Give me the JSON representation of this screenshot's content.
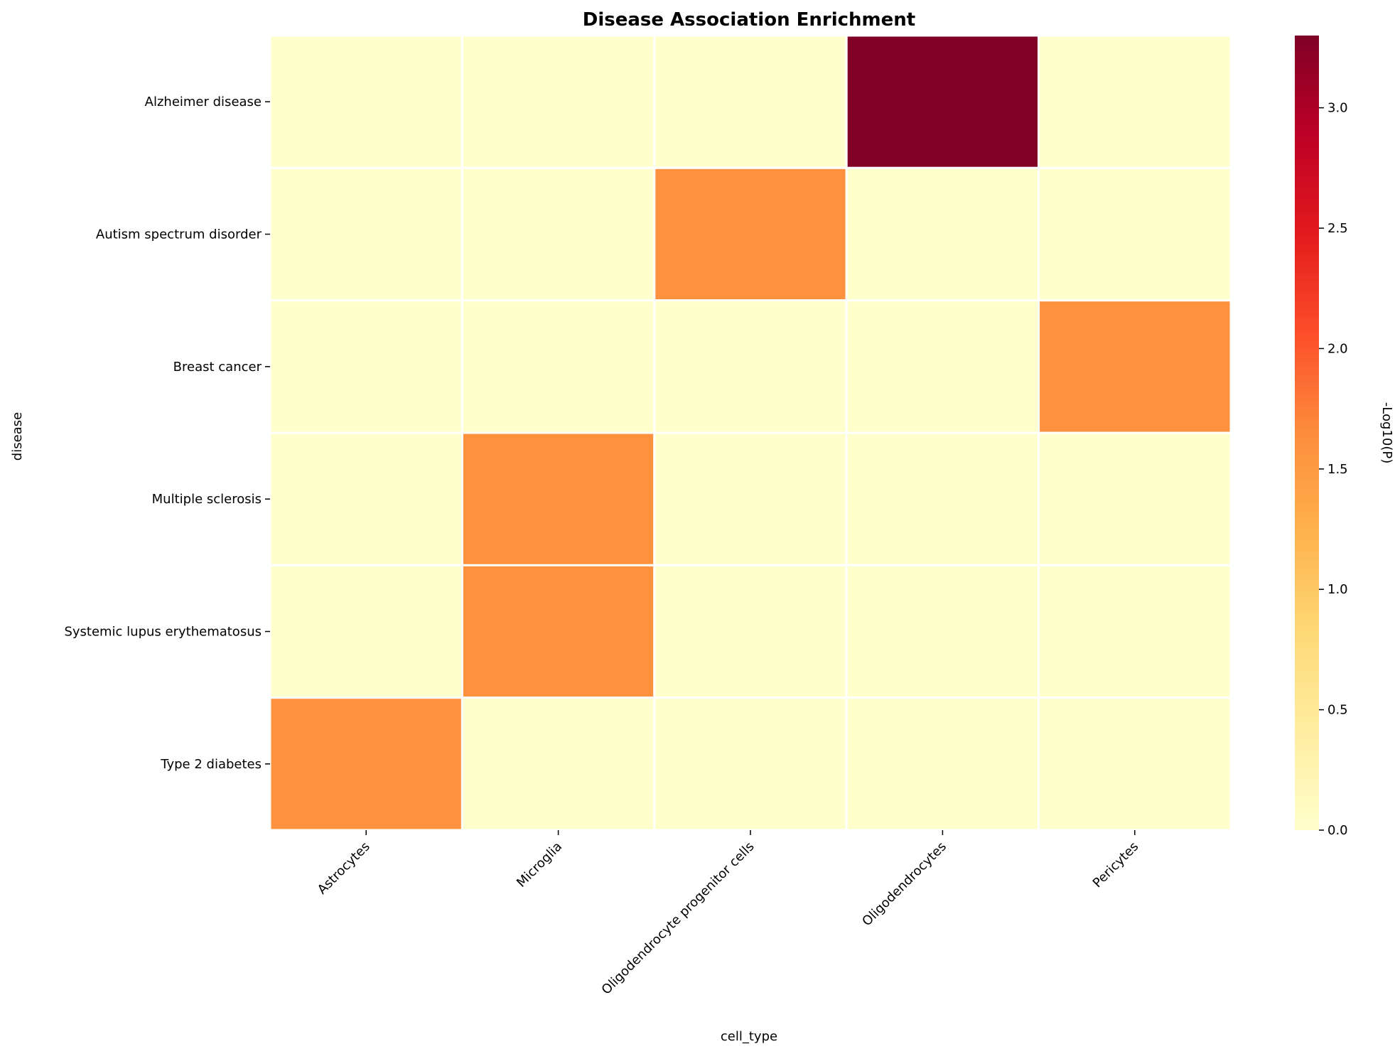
{
  "chart_data": {
    "type": "heatmap",
    "title": "Disease Association Enrichment",
    "xlabel": "cell_type",
    "ylabel": "disease",
    "x_categories": [
      "Astrocytes",
      "Microglia",
      "Oligodendrocyte progenitor cells",
      "Oligodendrocytes",
      "Pericytes"
    ],
    "y_categories": [
      "Alzheimer disease",
      "Autism spectrum disorder",
      "Breast cancer",
      "Multiple sclerosis",
      "Systemic lupus erythematosus",
      "Type 2 diabetes"
    ],
    "values": [
      [
        0,
        0,
        0,
        3.3,
        0
      ],
      [
        0,
        0,
        1.6,
        0,
        0
      ],
      [
        0,
        0,
        0,
        0,
        1.6
      ],
      [
        0,
        1.6,
        0,
        0,
        0
      ],
      [
        0,
        1.6,
        0,
        0,
        0
      ],
      [
        1.6,
        0,
        0,
        0,
        0
      ]
    ],
    "colorbar": {
      "label": "-Log10(P)",
      "range": [
        0,
        3.3
      ],
      "ticks": [
        "0.0",
        "0.5",
        "1.0",
        "1.5",
        "2.0",
        "2.5",
        "3.0"
      ],
      "colormap": "YlOrRd"
    },
    "grid": false,
    "legend": "colorbar-right"
  }
}
